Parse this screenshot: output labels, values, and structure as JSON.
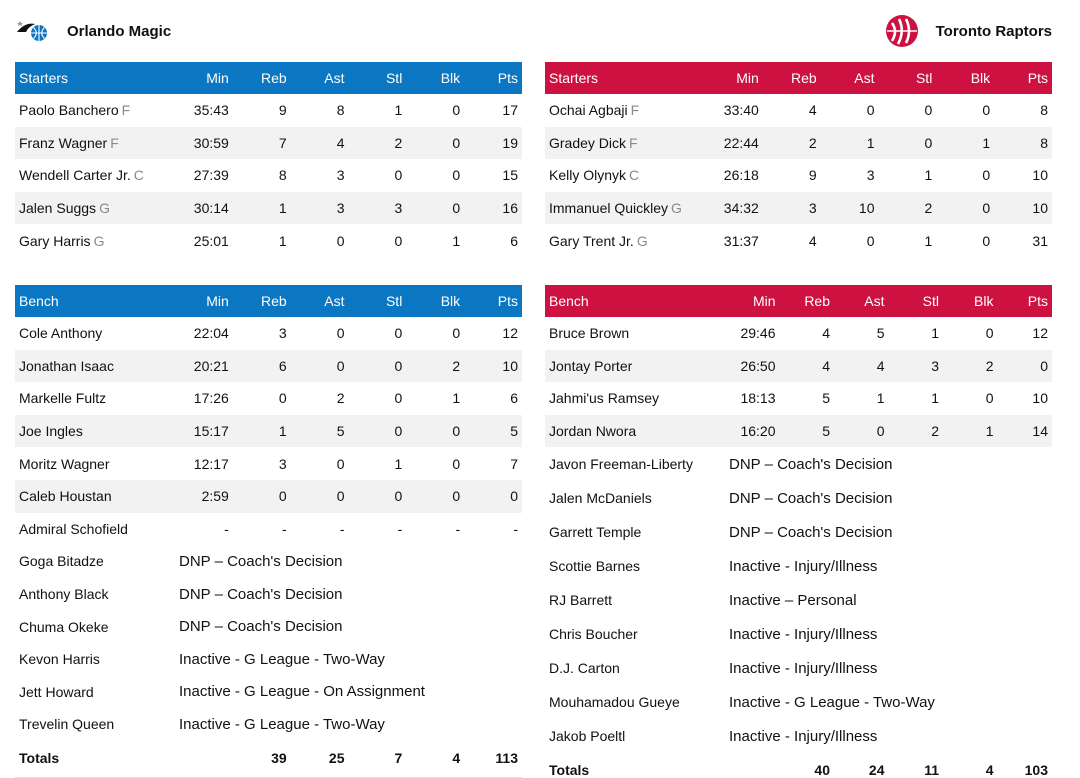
{
  "teams": [
    {
      "name": "Orlando Magic",
      "logo_icon": "magic-basketball-logo-icon",
      "accent": "#0b77c2",
      "headers": [
        "Min",
        "Reb",
        "Ast",
        "Stl",
        "Blk",
        "Pts"
      ],
      "starters_label": "Starters",
      "bench_label": "Bench",
      "starters": [
        {
          "name": "Paolo Banchero",
          "pos": "F",
          "stats": [
            "35:43",
            "9",
            "8",
            "1",
            "0",
            "17"
          ]
        },
        {
          "name": "Franz Wagner",
          "pos": "F",
          "stats": [
            "30:59",
            "7",
            "4",
            "2",
            "0",
            "19"
          ]
        },
        {
          "name": "Wendell Carter Jr.",
          "pos": "C",
          "stats": [
            "27:39",
            "8",
            "3",
            "0",
            "0",
            "15"
          ]
        },
        {
          "name": "Jalen Suggs",
          "pos": "G",
          "stats": [
            "30:14",
            "1",
            "3",
            "3",
            "0",
            "16"
          ]
        },
        {
          "name": "Gary Harris",
          "pos": "G",
          "stats": [
            "25:01",
            "1",
            "0",
            "0",
            "1",
            "6"
          ]
        }
      ],
      "bench": [
        {
          "name": "Cole Anthony",
          "stats": [
            "22:04",
            "3",
            "0",
            "0",
            "0",
            "12"
          ]
        },
        {
          "name": "Jonathan Isaac",
          "stats": [
            "20:21",
            "6",
            "0",
            "0",
            "2",
            "10"
          ]
        },
        {
          "name": "Markelle Fultz",
          "stats": [
            "17:26",
            "0",
            "2",
            "0",
            "1",
            "6"
          ]
        },
        {
          "name": "Joe Ingles",
          "stats": [
            "15:17",
            "1",
            "5",
            "0",
            "0",
            "5"
          ]
        },
        {
          "name": "Moritz Wagner",
          "stats": [
            "12:17",
            "3",
            "0",
            "1",
            "0",
            "7"
          ]
        },
        {
          "name": "Caleb Houstan",
          "stats": [
            "2:59",
            "0",
            "0",
            "0",
            "0",
            "0"
          ]
        },
        {
          "name": "Admiral Schofield",
          "stats": [
            "-",
            "-",
            "-",
            "-",
            "-",
            "-"
          ]
        },
        {
          "name": "Goga Bitadze",
          "status": "DNP – Coach's Decision"
        },
        {
          "name": "Anthony Black",
          "status": "DNP – Coach's Decision"
        },
        {
          "name": "Chuma Okeke",
          "status": "DNP – Coach's Decision"
        },
        {
          "name": "Kevon Harris",
          "status": "Inactive - G League - Two-Way"
        },
        {
          "name": "Jett Howard",
          "status": "Inactive - G League - On Assignment"
        },
        {
          "name": "Trevelin Queen",
          "status": "Inactive - G League - Two-Way"
        }
      ],
      "totals_label": "Totals",
      "totals": [
        "",
        "39",
        "25",
        "7",
        "4",
        "113"
      ]
    },
    {
      "name": "Toronto Raptors",
      "logo_icon": "raptors-claw-ball-logo-icon",
      "accent": "#cd1141",
      "headers": [
        "Min",
        "Reb",
        "Ast",
        "Stl",
        "Blk",
        "Pts"
      ],
      "starters_label": "Starters",
      "bench_label": "Bench",
      "starters": [
        {
          "name": "Ochai Agbaji",
          "pos": "F",
          "stats": [
            "33:40",
            "4",
            "0",
            "0",
            "0",
            "8"
          ]
        },
        {
          "name": "Gradey Dick",
          "pos": "F",
          "stats": [
            "22:44",
            "2",
            "1",
            "0",
            "1",
            "8"
          ]
        },
        {
          "name": "Kelly Olynyk",
          "pos": "C",
          "stats": [
            "26:18",
            "9",
            "3",
            "1",
            "0",
            "10"
          ]
        },
        {
          "name": "Immanuel Quickley",
          "pos": "G",
          "stats": [
            "34:32",
            "3",
            "10",
            "2",
            "0",
            "10"
          ]
        },
        {
          "name": "Gary Trent Jr.",
          "pos": "G",
          "stats": [
            "31:37",
            "4",
            "0",
            "1",
            "0",
            "31"
          ]
        }
      ],
      "bench": [
        {
          "name": "Bruce Brown",
          "stats": [
            "29:46",
            "4",
            "5",
            "1",
            "0",
            "12"
          ]
        },
        {
          "name": "Jontay Porter",
          "stats": [
            "26:50",
            "4",
            "4",
            "3",
            "2",
            "0"
          ]
        },
        {
          "name": "Jahmi'us Ramsey",
          "stats": [
            "18:13",
            "5",
            "1",
            "1",
            "0",
            "10"
          ]
        },
        {
          "name": "Jordan Nwora",
          "stats": [
            "16:20",
            "5",
            "0",
            "2",
            "1",
            "14"
          ]
        },
        {
          "name": "Javon Freeman-Liberty",
          "status": "DNP – Coach's Decision"
        },
        {
          "name": "Jalen McDaniels",
          "status": "DNP – Coach's Decision"
        },
        {
          "name": "Garrett Temple",
          "status": "DNP – Coach's Decision"
        },
        {
          "name": "Scottie Barnes",
          "status": "Inactive - Injury/Illness"
        },
        {
          "name": "RJ Barrett",
          "status": "Inactive – Personal"
        },
        {
          "name": "Chris Boucher",
          "status": "Inactive - Injury/Illness"
        },
        {
          "name": "D.J. Carton",
          "status": "Inactive - Injury/Illness"
        },
        {
          "name": "Mouhamadou Gueye",
          "status": "Inactive - G League - Two-Way"
        },
        {
          "name": "Jakob Poeltl",
          "status": "Inactive - Injury/Illness"
        }
      ],
      "totals_label": "Totals",
      "totals": [
        "",
        "40",
        "24",
        "11",
        "4",
        "103"
      ]
    }
  ]
}
